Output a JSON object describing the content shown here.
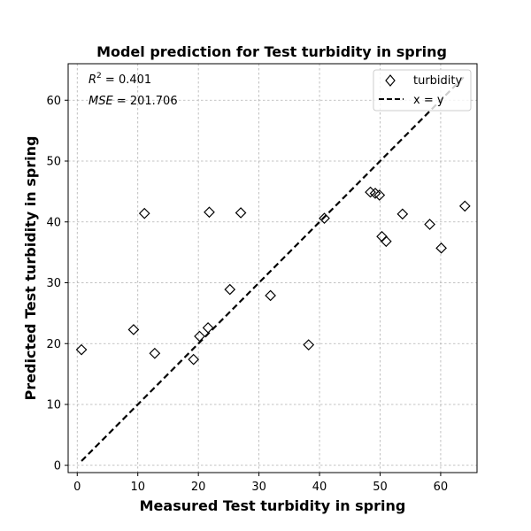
{
  "chart_data": {
    "type": "scatter",
    "title": "Model prediction for Test turbidity in spring",
    "xlabel": "Measured Test turbidity in spring",
    "ylabel": "Predicted Test turbidity in spring",
    "xlim": [
      -1.5,
      66
    ],
    "ylim": [
      -1.2,
      66
    ],
    "xticks": [
      0,
      10,
      20,
      30,
      40,
      50,
      60
    ],
    "yticks": [
      0,
      10,
      20,
      30,
      40,
      50,
      60
    ],
    "grid": true,
    "legend_position": "top-right",
    "annotations": {
      "r2_prefix": "R",
      "r2_sup": "2",
      "r2_value": " = 0.401",
      "mse_label": "MSE",
      "mse_value": " = 201.706"
    },
    "series": [
      {
        "name": "turbidity",
        "marker": "diamond",
        "color": "#000000",
        "points": [
          {
            "x": 0.7,
            "y": 19.0
          },
          {
            "x": 9.3,
            "y": 22.3
          },
          {
            "x": 11.1,
            "y": 41.4
          },
          {
            "x": 12.8,
            "y": 18.4
          },
          {
            "x": 19.2,
            "y": 17.4
          },
          {
            "x": 20.2,
            "y": 21.2
          },
          {
            "x": 21.6,
            "y": 22.6
          },
          {
            "x": 21.8,
            "y": 41.6
          },
          {
            "x": 25.2,
            "y": 28.9
          },
          {
            "x": 27.0,
            "y": 41.5
          },
          {
            "x": 31.9,
            "y": 27.9
          },
          {
            "x": 38.2,
            "y": 19.8
          },
          {
            "x": 40.8,
            "y": 40.6
          },
          {
            "x": 48.4,
            "y": 44.9
          },
          {
            "x": 49.2,
            "y": 44.7
          },
          {
            "x": 49.9,
            "y": 44.4
          },
          {
            "x": 50.3,
            "y": 37.6
          },
          {
            "x": 51.0,
            "y": 36.8
          },
          {
            "x": 53.7,
            "y": 41.3
          },
          {
            "x": 58.2,
            "y": 39.6
          },
          {
            "x": 60.1,
            "y": 35.7
          },
          {
            "x": 64.0,
            "y": 42.6
          }
        ]
      },
      {
        "name": "x = y",
        "type": "line",
        "style": "dashed",
        "color": "#000000",
        "points": [
          {
            "x": 0.7,
            "y": 0.7
          },
          {
            "x": 64.0,
            "y": 64.0
          }
        ]
      }
    ]
  }
}
